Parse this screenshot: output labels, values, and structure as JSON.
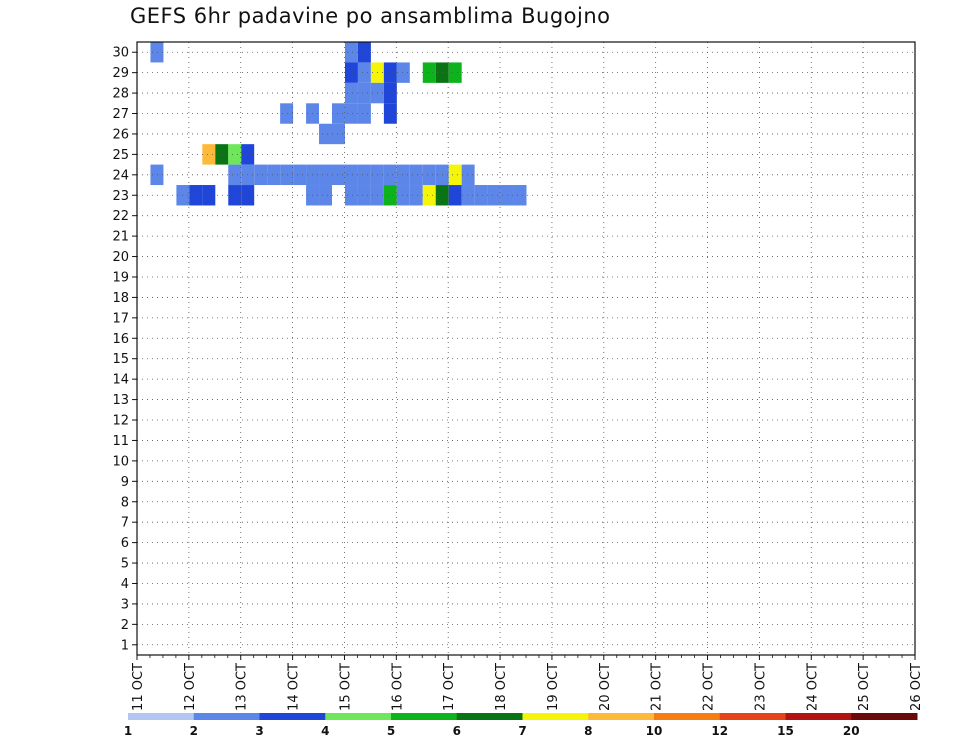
{
  "chart_data": {
    "type": "heatmap",
    "title": "GEFS 6hr padavine po ansamblima Bugojno",
    "xlabel": "",
    "ylabel": "",
    "x_tick_labels": [
      "11 OCT",
      "12 OCT",
      "13 OCT",
      "14 OCT",
      "15 OCT",
      "16 OCT",
      "17 OCT",
      "18 OCT",
      "19 OCT",
      "20 OCT",
      "21 OCT",
      "22 OCT",
      "23 OCT",
      "24 OCT",
      "25 OCT",
      "26 OCT"
    ],
    "y_tick_labels": [
      "1",
      "2",
      "3",
      "4",
      "5",
      "6",
      "7",
      "8",
      "9",
      "10",
      "11",
      "12",
      "13",
      "14",
      "15",
      "16",
      "17",
      "18",
      "19",
      "20",
      "21",
      "22",
      "23",
      "24",
      "25",
      "26",
      "27",
      "28",
      "29",
      "30"
    ],
    "xlim": [
      0,
      60
    ],
    "ylim": [
      0.5,
      30.5
    ],
    "x_unit": "6h steps from 11 OCT 00z",
    "grid": true,
    "colorbar": {
      "tick_labels": [
        "1",
        "2",
        "3",
        "4",
        "5",
        "6",
        "7",
        "8",
        "10",
        "12",
        "15",
        "20"
      ],
      "bins": [
        1,
        2,
        3,
        4,
        5,
        6,
        7,
        8,
        10,
        12,
        15,
        20
      ],
      "colors": [
        "#b3c6f2",
        "#5c87e8",
        "#1f45d9",
        "#6ee85a",
        "#0db31a",
        "#0a7313",
        "#f5f50a",
        "#fdb93a",
        "#f57d12",
        "#e8421a",
        "#b31212",
        "#6b0a0a"
      ]
    },
    "cells": [
      [
        1,
        30,
        1
      ],
      [
        17,
        30,
        2
      ],
      [
        16,
        30,
        1
      ],
      [
        16,
        29,
        2
      ],
      [
        17,
        29,
        1
      ],
      [
        18,
        29,
        6
      ],
      [
        19,
        29,
        2
      ],
      [
        20,
        29,
        1
      ],
      [
        22,
        29,
        4
      ],
      [
        23,
        29,
        5
      ],
      [
        24,
        29,
        4
      ],
      [
        18,
        28,
        1
      ],
      [
        19,
        28,
        2
      ],
      [
        19,
        27,
        2
      ],
      [
        17,
        27,
        1
      ],
      [
        15,
        26,
        1
      ],
      [
        13,
        27,
        1
      ],
      [
        14,
        26,
        1
      ],
      [
        15,
        27,
        1
      ],
      [
        16,
        28,
        1
      ],
      [
        16,
        27,
        1
      ],
      [
        17,
        28,
        1
      ],
      [
        11,
        27,
        1
      ],
      [
        5,
        25,
        7
      ],
      [
        6,
        25,
        5
      ],
      [
        7,
        25,
        3
      ],
      [
        8,
        25,
        2
      ],
      [
        1,
        24,
        1
      ],
      [
        24,
        24,
        6
      ],
      [
        25,
        24,
        1
      ],
      [
        3,
        23,
        1
      ],
      [
        4,
        23,
        2
      ],
      [
        5,
        23,
        2
      ],
      [
        7,
        23,
        2
      ],
      [
        8,
        23,
        2
      ],
      [
        13,
        23,
        1
      ],
      [
        14,
        23,
        1
      ],
      [
        16,
        23,
        1
      ],
      [
        17,
        23,
        1
      ],
      [
        18,
        23,
        1
      ],
      [
        19,
        23,
        4
      ],
      [
        20,
        23,
        1
      ],
      [
        21,
        23,
        1
      ],
      [
        22,
        23,
        6
      ],
      [
        23,
        23,
        5
      ],
      [
        24,
        23,
        2
      ],
      [
        25,
        23,
        1
      ],
      [
        26,
        23,
        1
      ],
      [
        27,
        23,
        1
      ],
      [
        28,
        23,
        1
      ],
      [
        29,
        23,
        1
      ],
      [
        7,
        24,
        1
      ],
      [
        8,
        24,
        1
      ],
      [
        9,
        24,
        1
      ],
      [
        10,
        24,
        1
      ],
      [
        11,
        24,
        1
      ],
      [
        12,
        24,
        1
      ],
      [
        13,
        24,
        1
      ],
      [
        14,
        24,
        1
      ],
      [
        15,
        24,
        1
      ],
      [
        16,
        24,
        1
      ],
      [
        17,
        24,
        1
      ],
      [
        18,
        24,
        1
      ],
      [
        19,
        24,
        1
      ],
      [
        20,
        24,
        1
      ],
      [
        21,
        24,
        1
      ],
      [
        22,
        24,
        1
      ],
      [
        23,
        24,
        1
      ]
    ]
  }
}
